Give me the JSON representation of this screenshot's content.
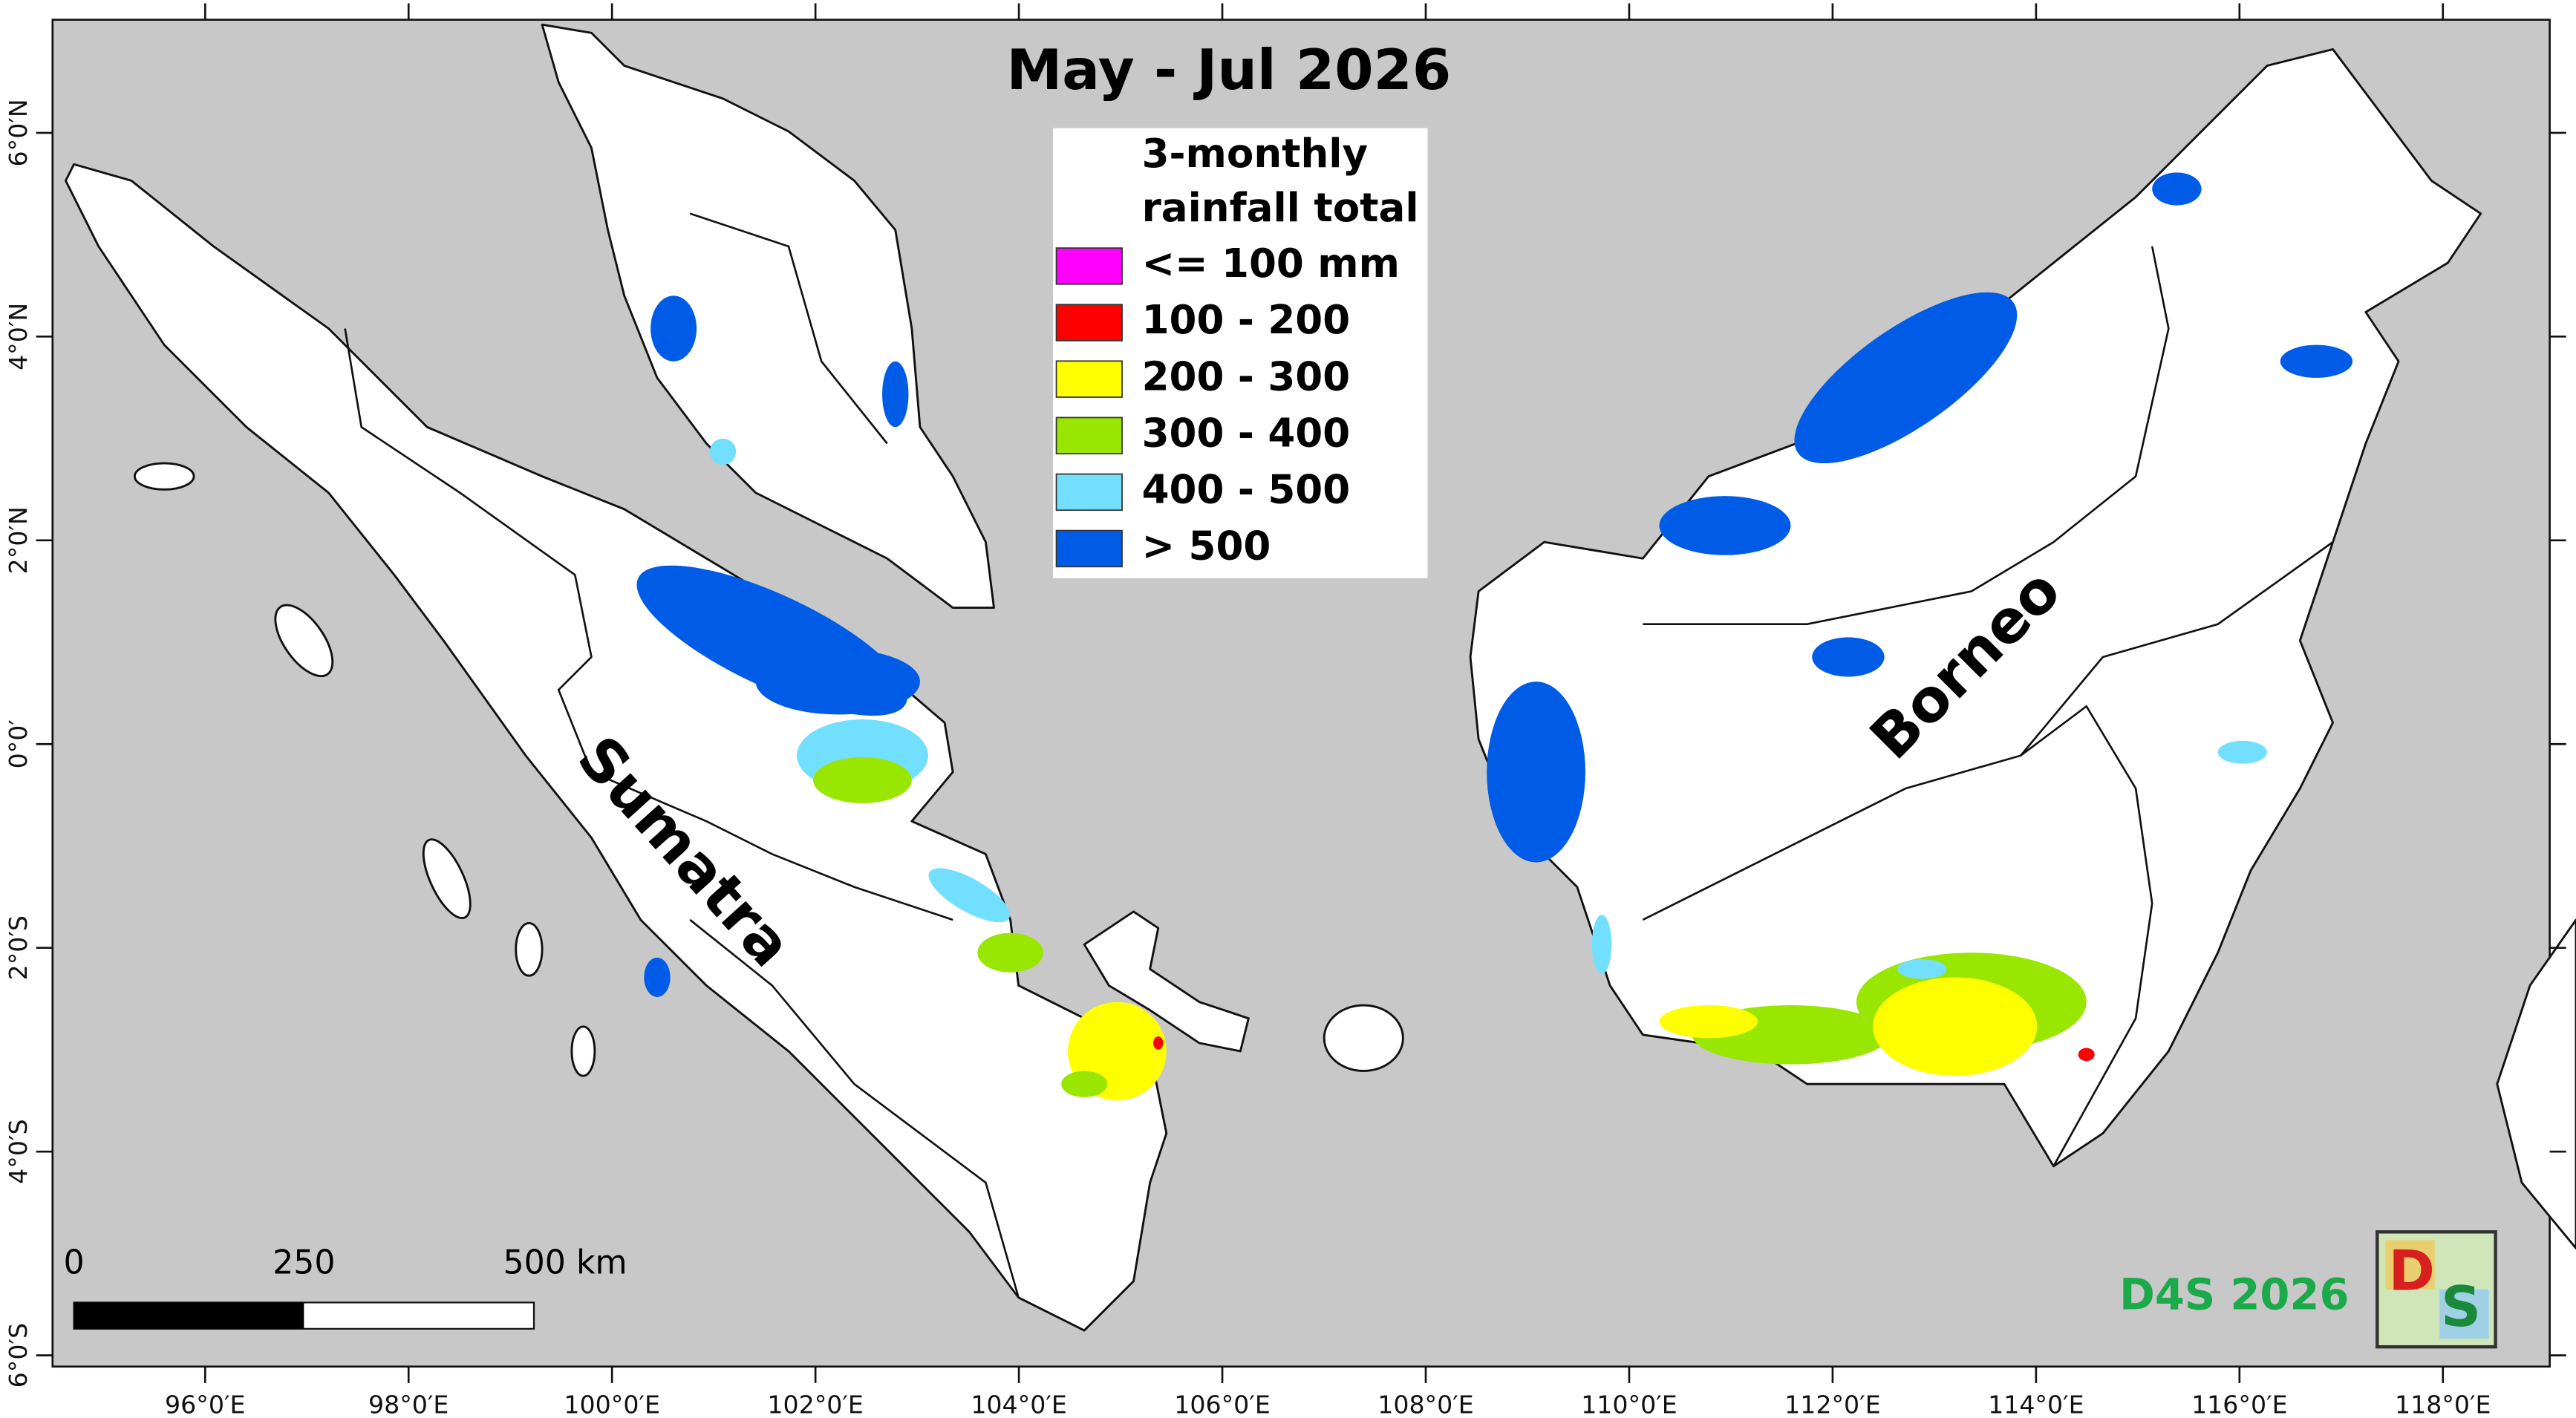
{
  "map": {
    "title": "May - Jul 2026",
    "extent": {
      "xlim": [
        94.5,
        119.05
      ],
      "ylim": [
        -6.11,
        7.11
      ]
    },
    "xticks": [
      {
        "value": 96,
        "label": "96°0′E"
      },
      {
        "value": 98,
        "label": "98°0′E"
      },
      {
        "value": 100,
        "label": "100°0′E"
      },
      {
        "value": 102,
        "label": "102°0′E"
      },
      {
        "value": 104,
        "label": "104°0′E"
      },
      {
        "value": 106,
        "label": "106°0′E"
      },
      {
        "value": 108,
        "label": "108°0′E"
      },
      {
        "value": 110,
        "label": "110°0′E"
      },
      {
        "value": 112,
        "label": "112°0′E"
      },
      {
        "value": 114,
        "label": "114°0′E"
      },
      {
        "value": 116,
        "label": "116°0′E"
      },
      {
        "value": 118,
        "label": "118°0′E"
      }
    ],
    "yticks": [
      {
        "value": 6,
        "label": "6°0′N"
      },
      {
        "value": 4,
        "label": "4°0′N"
      },
      {
        "value": 2,
        "label": "2°0′N"
      },
      {
        "value": 0,
        "label": "0°0′"
      },
      {
        "value": -2,
        "label": "2°0′S"
      },
      {
        "value": -4,
        "label": "4°0′S"
      },
      {
        "value": -6,
        "label": "6°0′S"
      }
    ],
    "legend": {
      "title_lines": [
        "3-monthly",
        "rainfall total"
      ],
      "items": [
        {
          "label": "<= 100 mm",
          "color": "#ff00ff"
        },
        {
          "label": "100 - 200",
          "color": "#ff0000"
        },
        {
          "label": "200 - 300",
          "color": "#ffff00"
        },
        {
          "label": "300 - 400",
          "color": "#99e600"
        },
        {
          "label": "400 - 500",
          "color": "#73dfff"
        },
        {
          "label": "> 500",
          "color": "#005ce6"
        }
      ]
    },
    "places": [
      "Sumatra",
      "Borneo"
    ],
    "scale_bar": {
      "labels": [
        "0",
        "250",
        "500 km"
      ]
    },
    "credit": "D4S 2026",
    "logo": [
      "D",
      "S"
    ]
  }
}
